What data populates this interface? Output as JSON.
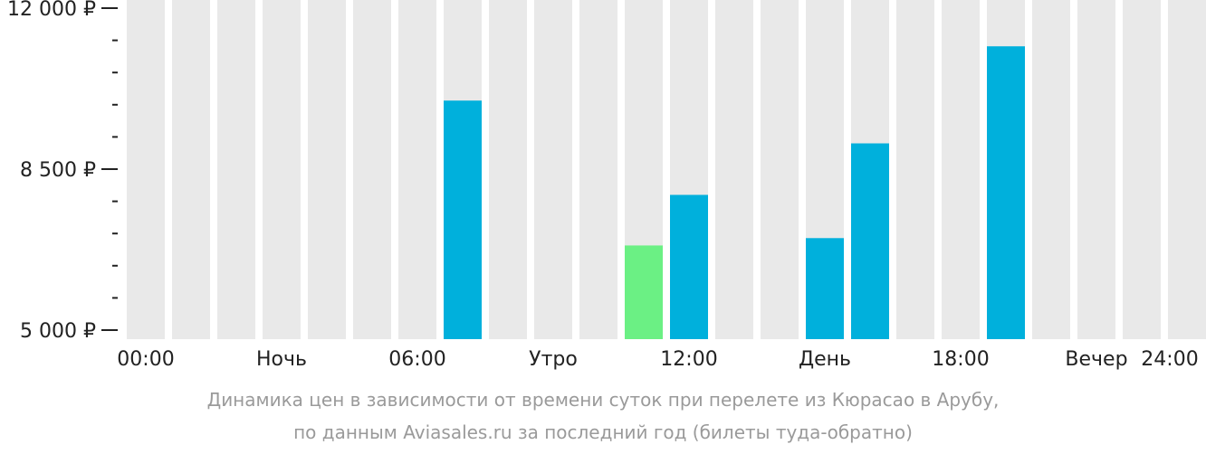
{
  "chart_data": {
    "type": "bar",
    "ylim": [
      5000,
      12000
    ],
    "y_major_ticks": [
      {
        "value": 5000,
        "label": "5 000 ₽"
      },
      {
        "value": 8500,
        "label": "8 500 ₽"
      },
      {
        "value": 12000,
        "label": "12 000 ₽"
      }
    ],
    "y_minor_step": 700,
    "x_tick_labels": [
      "00:00",
      "Ночь",
      "06:00",
      "Утро",
      "12:00",
      "День",
      "18:00",
      "Вечер",
      "24:00"
    ],
    "hours": [
      0,
      1,
      2,
      3,
      4,
      5,
      6,
      7,
      8,
      9,
      10,
      11,
      12,
      13,
      14,
      15,
      16,
      17,
      18,
      19,
      20,
      21,
      22,
      23
    ],
    "values": [
      null,
      null,
      null,
      null,
      null,
      null,
      null,
      9990,
      null,
      null,
      null,
      6840,
      7940,
      null,
      null,
      7000,
      9060,
      null,
      null,
      11170,
      null,
      null,
      null,
      null
    ],
    "highlight_hour": 11,
    "colors": {
      "background_column": "#e9e9e9",
      "bar": "#00b0dc",
      "highlight_bar": "#6bf084",
      "axis": "#222222"
    },
    "grid": false,
    "legend": "none"
  },
  "caption": {
    "line1": "Динамика цен в зависимости от времени суток при перелете из Кюрасао в Арубу,",
    "line2": "по данным Aviasales.ru за последний год (билеты туда-обратно)"
  }
}
